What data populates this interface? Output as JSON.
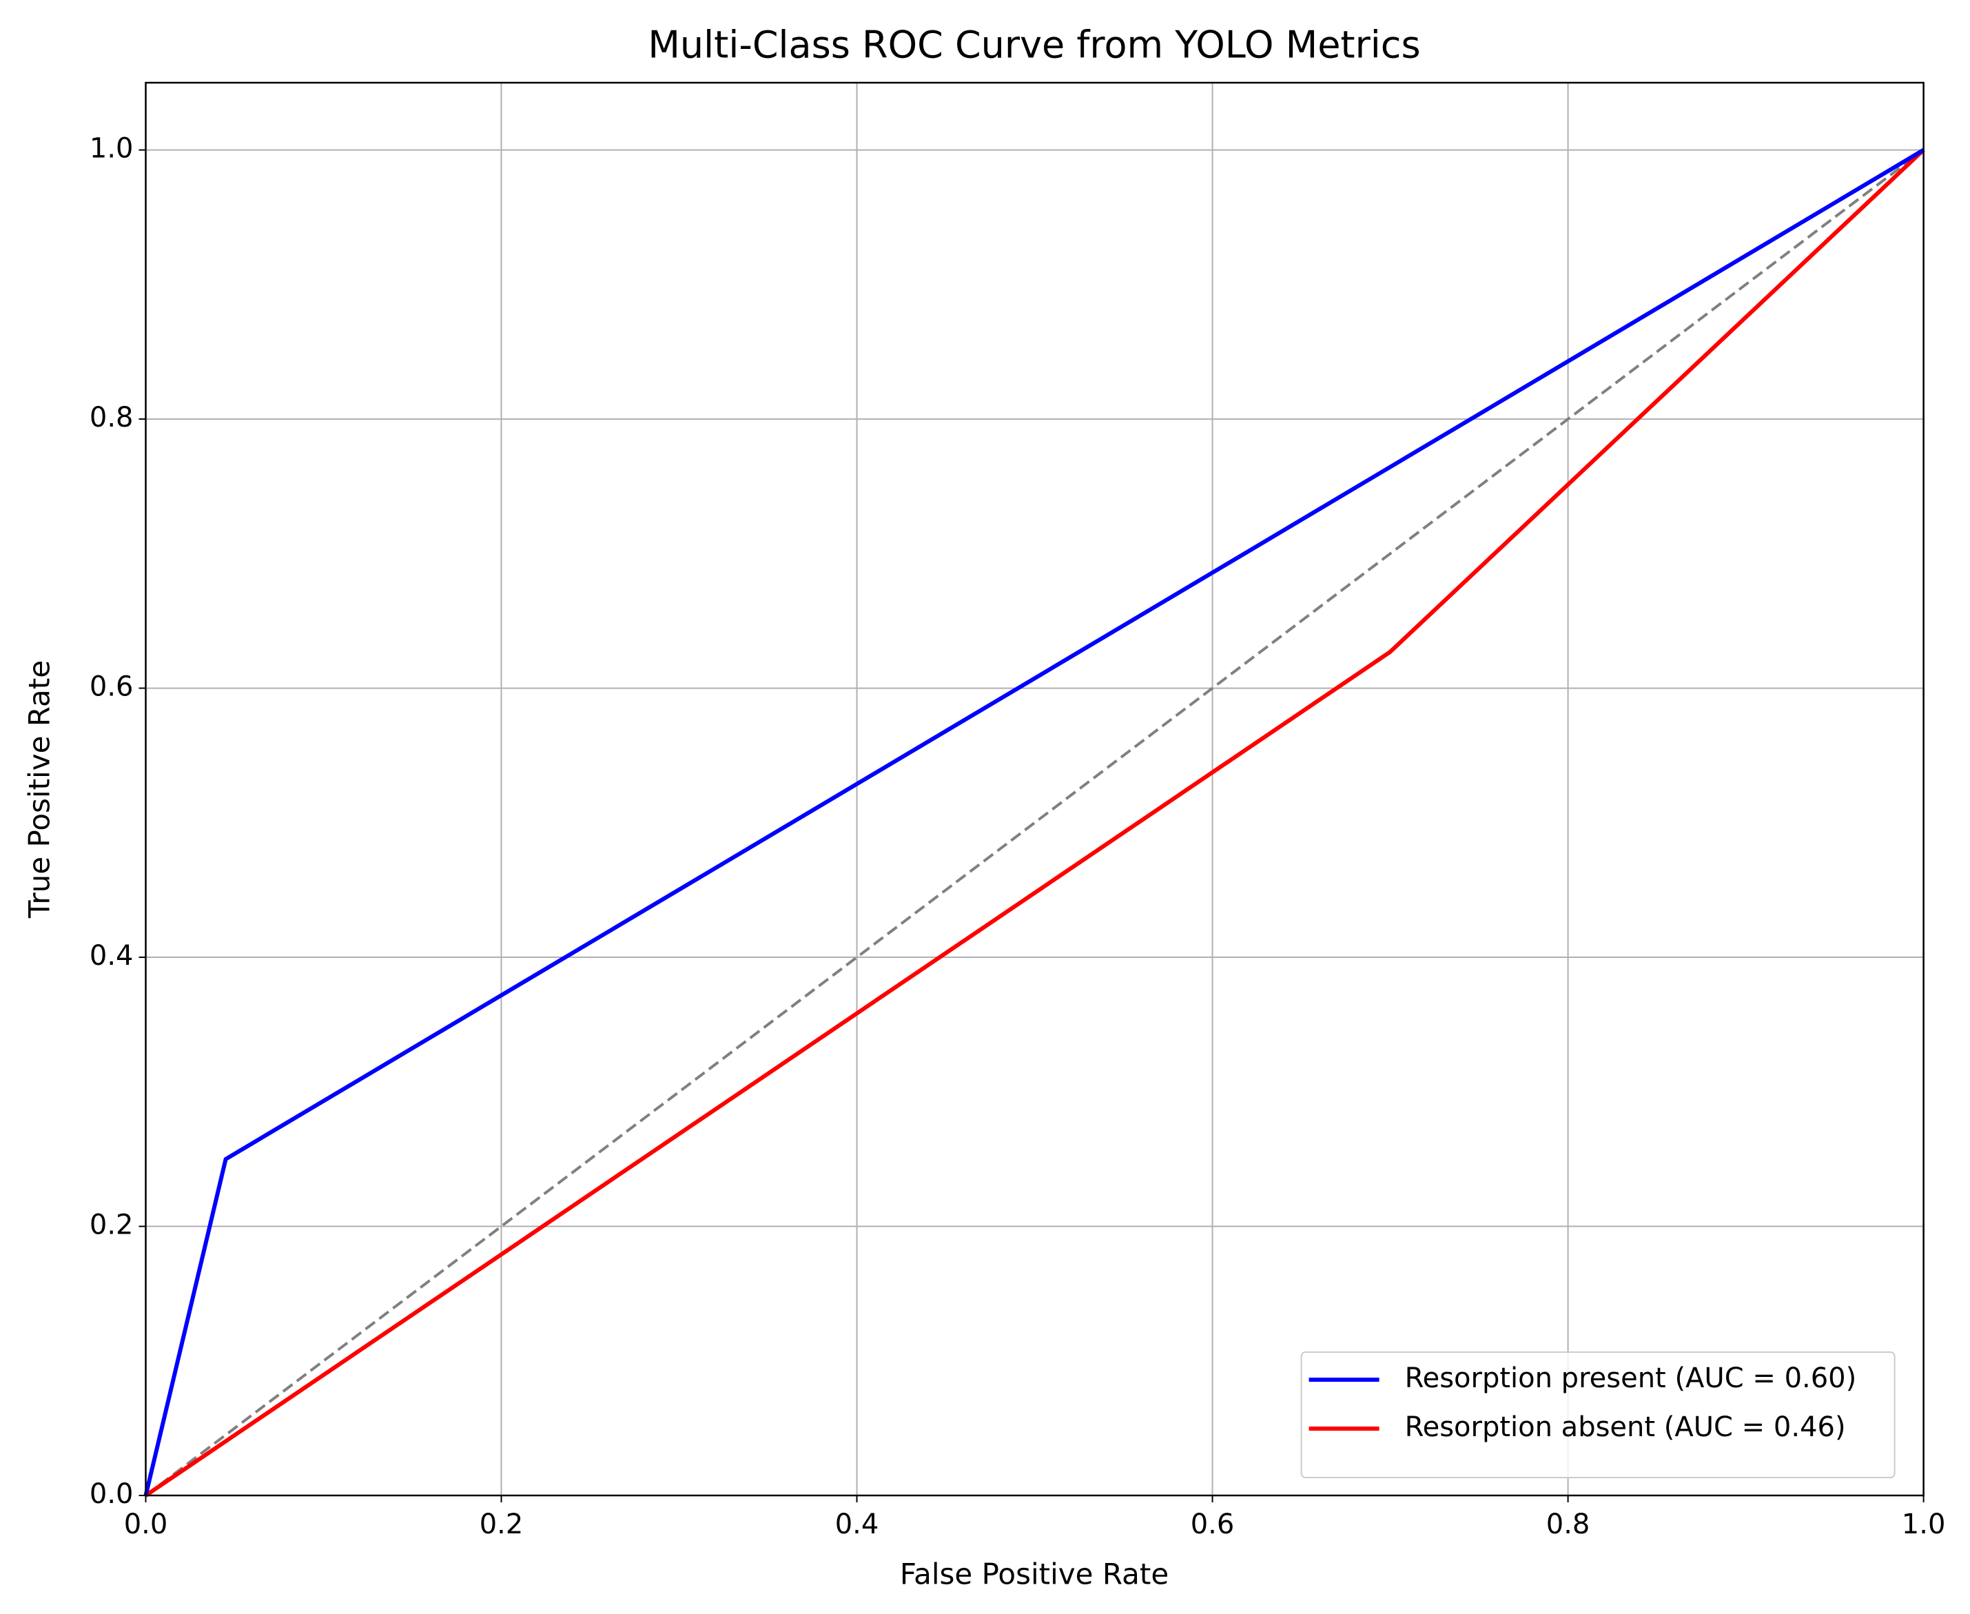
{
  "chart_data": {
    "type": "line",
    "title": "Multi-Class ROC Curve from YOLO Metrics",
    "x_label": "False Positive Rate",
    "y_label": "True Positive Rate",
    "series": [
      {
        "name": "Resorption present (AUC = 0.60)",
        "color": "#0000ff",
        "x": [
          0,
          0.045,
          1
        ],
        "values": [
          0,
          0.25,
          1
        ]
      },
      {
        "name": "Resorption absent (AUC = 0.46)",
        "color": "#ff0000",
        "x": [
          0,
          0.7,
          1
        ],
        "values": [
          0,
          0.627,
          1
        ]
      },
      {
        "color": "#808080",
        "dashed": true,
        "x": [
          0,
          1
        ],
        "values": [
          0,
          1
        ]
      }
    ],
    "xlim": [
      0,
      1
    ],
    "ylim": [
      0,
      1.05
    ],
    "xticks": [
      {
        "value": 0,
        "label": "0.0"
      },
      0.2,
      0.4,
      0.6,
      0.8,
      {
        "value": 1,
        "label": "1.0"
      }
    ],
    "yticks": [
      {
        "value": 0,
        "label": "0.0"
      },
      0.2,
      0.4,
      0.6,
      0.8,
      {
        "value": 1,
        "label": "1.0"
      }
    ],
    "grid": true,
    "legend": "lower right"
  }
}
